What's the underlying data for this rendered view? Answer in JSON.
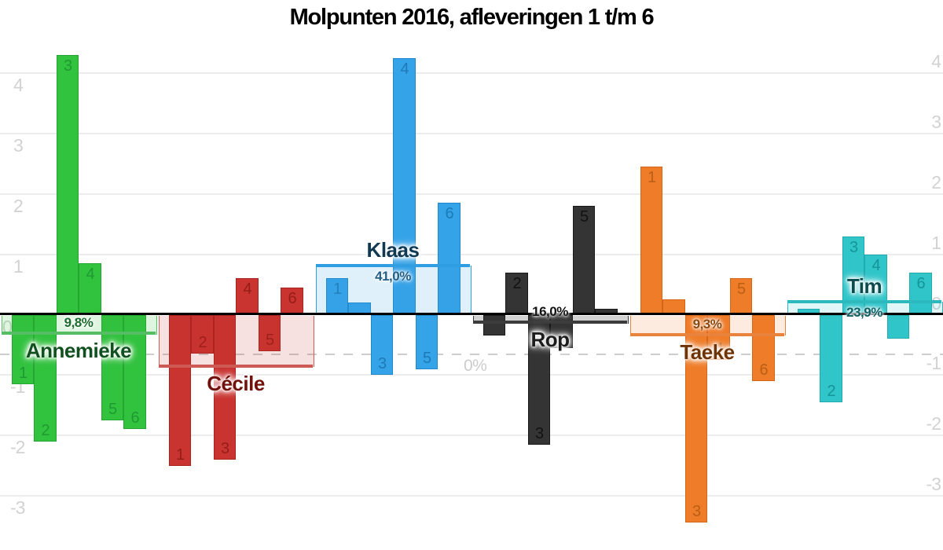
{
  "title": "Molpunten 2016, afleveringen 1 t/m 6",
  "chart_data": {
    "type": "bar",
    "title": "Molpunten 2016, afleveringen 1 t/m 6",
    "episodes": [
      "1",
      "2",
      "3",
      "4",
      "5",
      "6"
    ],
    "y_axis": {
      "ticks": [
        4,
        3,
        2,
        1,
        0,
        "-1",
        "-2",
        "-3"
      ],
      "tick_values": [
        4,
        3,
        2,
        1,
        0,
        -1,
        -2,
        -3
      ],
      "ylim": [
        -3.6,
        4.4
      ],
      "sides": "both",
      "grid": true
    },
    "dashed_line": {
      "label": "0%",
      "value_units": -0.66
    },
    "legend_position": "none",
    "series": [
      {
        "id": "annemieke",
        "name": "Annemieke",
        "pct_label": "9,8%",
        "pct_line_units": -0.31,
        "values": [
          -1.15,
          -2.1,
          4.3,
          0.85,
          -1.75,
          -1.9
        ],
        "value_labels_shown": [
          true,
          true,
          true,
          true,
          true,
          true
        ],
        "colors": {
          "bar": "#31c23e",
          "bar_border": "#27a534",
          "value_label": "#1d9430",
          "band_fill": "rgba(49,194,62,0.16)",
          "band_line": "#55bd64",
          "name": "#11501f",
          "pct": "#1e6b2e"
        }
      },
      {
        "id": "cecile",
        "name": "Cécile",
        "pct_label": null,
        "pct_line_units": -0.85,
        "values": [
          -2.5,
          -0.65,
          -2.4,
          0.6,
          -0.6,
          0.45
        ],
        "value_labels_shown": [
          true,
          true,
          true,
          true,
          true,
          true
        ],
        "colors": {
          "bar": "#c93330",
          "bar_border": "#a8221f",
          "value_label": "#8c1a12",
          "band_fill": "rgba(201,51,48,0.15)",
          "band_line": "#cd5a54",
          "name": "#71110c",
          "pct": "#8c1a12"
        }
      },
      {
        "id": "klaas",
        "name": "Klaas",
        "pct_label": "41,0%",
        "pct_line_units": 0.82,
        "values": [
          0.6,
          0.2,
          -1.0,
          4.25,
          -0.9,
          1.85
        ],
        "value_labels_shown": [
          true,
          false,
          true,
          true,
          true,
          true
        ],
        "colors": {
          "bar": "#35a3e8",
          "bar_border": "#2187c9",
          "value_label": "#1973ad",
          "band_fill": "rgba(53,163,232,0.16)",
          "band_line": "#2e9de2",
          "name": "#123952",
          "pct": "#235e86"
        }
      },
      {
        "id": "rop",
        "name": "Rop",
        "pct_label": "16,0%",
        "pct_line_units": -0.13,
        "values": [
          -0.35,
          0.7,
          -2.15,
          -0.55,
          1.8,
          0.1
        ],
        "value_labels_shown": [
          false,
          true,
          true,
          false,
          true,
          false
        ],
        "colors": {
          "bar": "#343434",
          "bar_border": "#1a1a1a",
          "value_label": "#0d0d0d",
          "band_fill": "rgba(52,52,52,0.22)",
          "band_line": "#3c3c3c",
          "name": "#1d1d1d",
          "pct": "#111111"
        }
      },
      {
        "id": "taeke",
        "name": "Taeke",
        "pct_label": "9,3%",
        "pct_line_units": -0.33,
        "values": [
          2.45,
          0.25,
          -3.45,
          -0.75,
          0.6,
          -1.1
        ],
        "value_labels_shown": [
          true,
          false,
          true,
          true,
          true,
          true
        ],
        "colors": {
          "bar": "#ef7c28",
          "bar_border": "#d4661a",
          "value_label": "#b05a12",
          "band_fill": "rgba(239,124,40,0.15)",
          "band_line": "#e9823b",
          "name": "#6e3408",
          "pct": "#8a4a10"
        }
      },
      {
        "id": "tim",
        "name": "Tim",
        "pct_label": "23,9%",
        "pct_line_units": 0.21,
        "values": [
          0.1,
          -1.45,
          1.3,
          1.0,
          -0.4,
          0.7
        ],
        "value_labels_shown": [
          false,
          true,
          true,
          true,
          false,
          true
        ],
        "colors": {
          "bar": "#2fc5c9",
          "bar_border": "#22aaad",
          "value_label": "#118d91",
          "band_fill": "rgba(47,197,201,0.15)",
          "band_line": "#2cb9bd",
          "name": "#0b4b4e",
          "pct": "#0e6164"
        }
      }
    ]
  }
}
